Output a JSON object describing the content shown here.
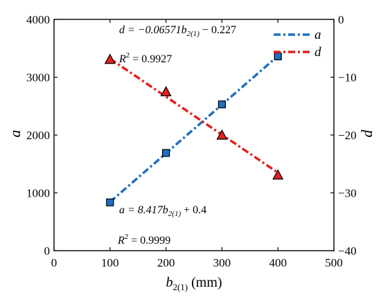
{
  "chart_data": {
    "type": "line",
    "xlabel": "b",
    "xlabel_sub": "2(1)",
    "xlabel_unit": " (mm)",
    "ylabel_left": "a",
    "ylabel_right": "d",
    "xlim": [
      0,
      500
    ],
    "ylim_left": [
      0,
      4000
    ],
    "ylim_right": [
      -40,
      0
    ],
    "xticks": [
      "0",
      "100",
      "200",
      "300",
      "400",
      "500"
    ],
    "yticks_left": [
      "0",
      "1000",
      "2000",
      "3000",
      "4000"
    ],
    "yticks_right": [
      "-40",
      "-30",
      "-20",
      "-10",
      "0"
    ],
    "grid": false,
    "legend_position": "top-right",
    "series": [
      {
        "name": "a",
        "axis": "left",
        "color": "#1f6fbf",
        "marker": "square",
        "line_style": "dash-dot",
        "x": [
          100,
          200,
          300,
          400
        ],
        "y": [
          835,
          1690,
          2530,
          3360
        ],
        "fit": {
          "slope": 8.417,
          "intercept": 0.4
        }
      },
      {
        "name": "d",
        "axis": "right",
        "color": "#e32020",
        "marker": "triangle",
        "line_style": "dash-dot",
        "x": [
          100,
          200,
          300,
          400
        ],
        "y": [
          -6.9,
          -12.5,
          -20.0,
          -26.9
        ],
        "fit": {
          "slope": -0.06571,
          "intercept": -0.227
        }
      }
    ],
    "annotations": {
      "d_eq": "d = −0.06571b",
      "d_eq_sub": "2(1)",
      "d_eq_tail": " − 0.227",
      "d_r2_prefix": "R",
      "d_r2_sup": "2",
      "d_r2_value": " = 0.9927",
      "a_eq": "a = 8.417b",
      "a_eq_sub": "2(1)",
      "a_eq_tail": " + 0.4",
      "a_r2_prefix": "R",
      "a_r2_sup": "2",
      "a_r2_value": " = 0.9999"
    }
  }
}
